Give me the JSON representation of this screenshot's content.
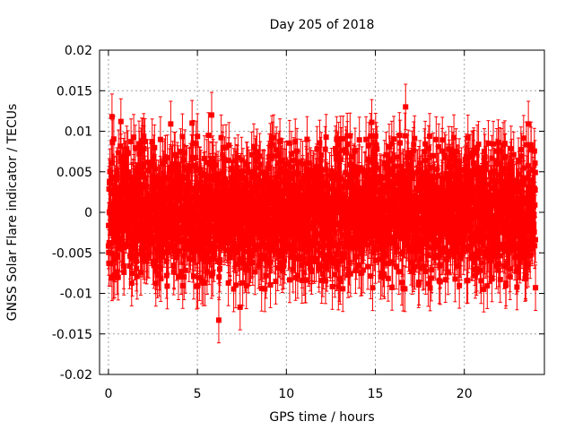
{
  "chart_data": {
    "type": "scatter",
    "title": "Day 205 of 2018",
    "xlabel": "GPS time / hours",
    "ylabel": "GNSS Solar Flare indicator / TECUs",
    "xlim": [
      -0.5,
      24.5
    ],
    "ylim": [
      -0.02,
      0.02
    ],
    "xticks": [
      0,
      5,
      10,
      15,
      20
    ],
    "xtick_labels": [
      "0",
      "5",
      "10",
      "15",
      "20"
    ],
    "yticks": [
      -0.02,
      -0.015,
      -0.01,
      -0.005,
      0,
      0.005,
      0.01,
      0.015,
      0.02
    ],
    "ytick_labels": [
      "-0.02",
      "-0.015",
      "-0.01",
      "-0.005",
      "0",
      "0.005",
      "0.01",
      "0.015",
      "0.02"
    ],
    "grid": true,
    "series": [
      {
        "name": "Solar flare indicator",
        "color": "#ff0000",
        "x_start": 0.0,
        "x_end": 24.0,
        "sample_interval_hours": 0.0083,
        "value_mean": 0.0,
        "value_std": 0.004,
        "error_bar_half_width": 0.0028,
        "notable_points": [
          {
            "x": 0.2,
            "y": 0.0118
          },
          {
            "x": 0.7,
            "y": 0.0112
          },
          {
            "x": 3.5,
            "y": 0.0109
          },
          {
            "x": 4.7,
            "y": 0.011
          },
          {
            "x": 5.8,
            "y": 0.012
          },
          {
            "x": 6.2,
            "y": -0.0133
          },
          {
            "x": 7.4,
            "y": -0.0117
          },
          {
            "x": 14.8,
            "y": 0.0111
          },
          {
            "x": 16.7,
            "y": 0.013
          },
          {
            "x": 20.8,
            "y": 0.0084
          },
          {
            "x": 23.6,
            "y": 0.0109
          },
          {
            "x": 24.0,
            "y": -0.0093
          }
        ]
      }
    ]
  }
}
